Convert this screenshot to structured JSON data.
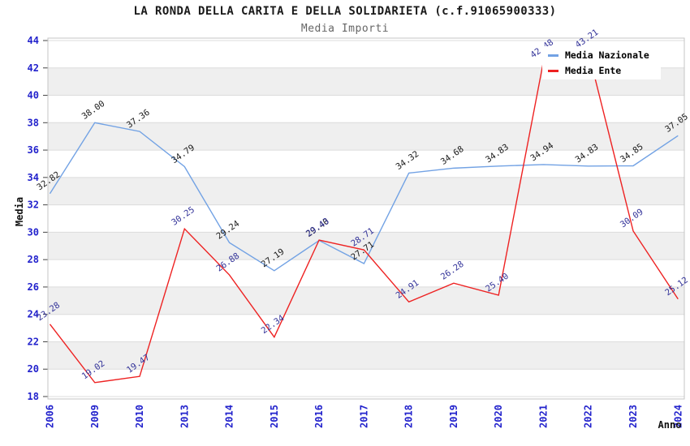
{
  "header": {
    "title": "LA RONDA DELLA CARITA E DELLA SOLIDARIETA (c.f.91065900333)",
    "subtitle": "Media Importi"
  },
  "legend": {
    "items": [
      {
        "label": "Media Nazionale",
        "color": "#72a2e4"
      },
      {
        "label": "Media Ente",
        "color": "#ee2222"
      }
    ]
  },
  "colors": {
    "axis_tick": "#2222cc",
    "grid_line": "#dcdcdc",
    "plot_border": "#c4c4c4",
    "band_fill": "#efefef",
    "national_line": "#72a2e4",
    "ente_line": "#ee2222",
    "national_label": "#1a1a1a",
    "ente_label": "#333399"
  },
  "chart_data": {
    "type": "line",
    "title": "LA RONDA DELLA CARITA E DELLA SOLIDARIETA (c.f.91065900333)",
    "subtitle": "Media Importi",
    "xlabel": "Anno",
    "ylabel": "Media",
    "ylim": [
      18,
      44
    ],
    "y_ticks": [
      18,
      20,
      22,
      24,
      26,
      28,
      30,
      32,
      34,
      36,
      38,
      40,
      42,
      44
    ],
    "gray_bands": [
      42,
      38,
      34,
      30,
      26,
      22
    ],
    "band_fill": "#efefef",
    "grid": true,
    "legend_position": "top-right",
    "categories": [
      "2006",
      "2009",
      "2010",
      "2013",
      "2014",
      "2015",
      "2016",
      "2017",
      "2018",
      "2019",
      "2020",
      "2021",
      "2022",
      "2023",
      "2024"
    ],
    "series": [
      {
        "name": "Media Nazionale",
        "color": "#72a2e4",
        "label_color": "#1a1a1a",
        "values": [
          32.82,
          38.0,
          37.36,
          34.79,
          29.24,
          27.19,
          29.4,
          27.71,
          34.32,
          34.68,
          34.83,
          34.94,
          34.83,
          34.85,
          37.05
        ]
      },
      {
        "name": "Media Ente",
        "color": "#ee2222",
        "label_color": "#333399",
        "values": [
          23.28,
          19.02,
          19.47,
          30.25,
          26.88,
          22.34,
          29.43,
          28.71,
          24.91,
          26.28,
          25.4,
          42.48,
          43.21,
          30.09,
          25.12
        ]
      }
    ],
    "note": "2022 Media Ente point and label partially hidden behind legend box"
  }
}
